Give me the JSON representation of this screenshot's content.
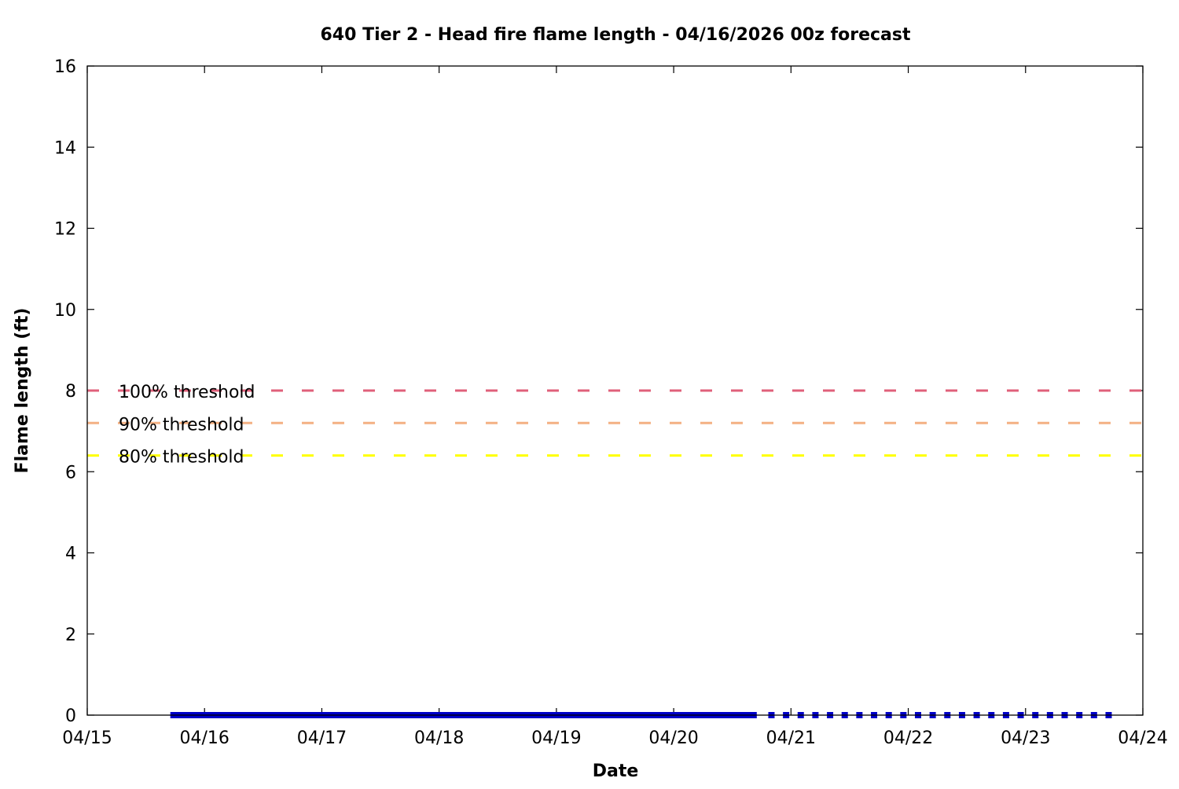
{
  "chart_data": {
    "type": "line",
    "title": "640 Tier 2 - Head fire flame length - 04/16/2026 00z forecast",
    "xlabel": "Date",
    "ylabel": "Flame length (ft)",
    "xlim": [
      "04/15 00:00",
      "04/24 00:00"
    ],
    "ylim": [
      0,
      16
    ],
    "x_ticks": [
      "04/15",
      "04/16",
      "04/17",
      "04/18",
      "04/19",
      "04/20",
      "04/21",
      "04/22",
      "04/23",
      "04/24"
    ],
    "y_ticks": [
      0,
      2,
      4,
      6,
      8,
      10,
      12,
      14,
      16
    ],
    "grid": false,
    "series": [
      {
        "style": "solid-line",
        "color": "#0000c8",
        "x": [
          "04/15 17:00",
          "04/20 17:00"
        ],
        "y": [
          0,
          0
        ]
      },
      {
        "style": "square-points",
        "color": "#0000c8",
        "x": [
          "04/20 20:00",
          "04/20 23:00",
          "04/21 02:00",
          "04/21 05:00",
          "04/21 08:00",
          "04/21 11:00",
          "04/21 14:00",
          "04/21 17:00",
          "04/21 20:00",
          "04/21 23:00",
          "04/22 02:00",
          "04/22 05:00",
          "04/22 08:00",
          "04/22 11:00",
          "04/22 14:00",
          "04/22 17:00",
          "04/22 20:00",
          "04/22 23:00",
          "04/23 02:00",
          "04/23 05:00",
          "04/23 08:00",
          "04/23 11:00",
          "04/23 14:00",
          "04/23 17:00"
        ],
        "y": [
          0,
          0,
          0,
          0,
          0,
          0,
          0,
          0,
          0,
          0,
          0,
          0,
          0,
          0,
          0,
          0,
          0,
          0,
          0,
          0,
          0,
          0,
          0,
          0
        ]
      }
    ],
    "thresholds": [
      {
        "label": "100% threshold",
        "value": 8.0,
        "color": "#e0607a"
      },
      {
        "label": "90% threshold",
        "value": 7.2,
        "color": "#f4b183"
      },
      {
        "label": "80% threshold",
        "value": 6.4,
        "color": "#ffff00"
      }
    ]
  }
}
